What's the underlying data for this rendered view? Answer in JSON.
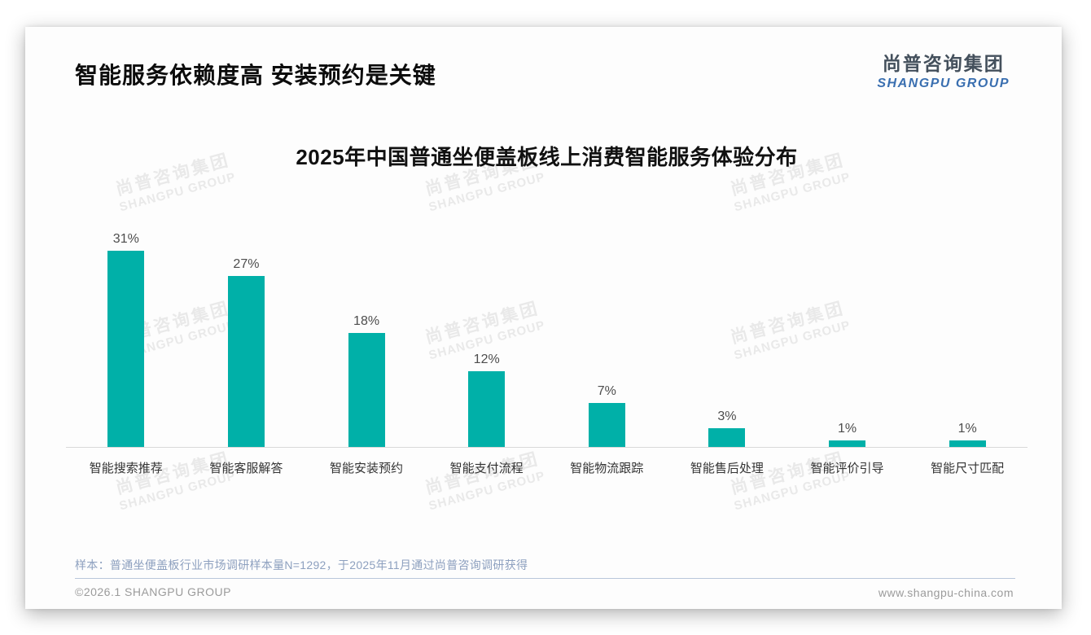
{
  "page": {
    "title": "智能服务依赖度高 安装预约是关键",
    "logo": {
      "cn": "尚普咨询集团",
      "en": "SHANGPU GROUP"
    },
    "watermark": {
      "cn": "尚普咨询集团",
      "en": "SHANGPU GROUP"
    }
  },
  "chart_data": {
    "type": "bar",
    "title": "2025年中国普通坐便盖板线上消费智能服务体验分布",
    "categories": [
      "智能搜索推荐",
      "智能客服解答",
      "智能安装预约",
      "智能支付流程",
      "智能物流跟踪",
      "智能售后处理",
      "智能评价引导",
      "智能尺寸匹配"
    ],
    "values": [
      31,
      27,
      18,
      12,
      7,
      3,
      1,
      1
    ],
    "unit": "%",
    "value_labels": [
      "31%",
      "27%",
      "18%",
      "12%",
      "7%",
      "3%",
      "1%",
      "1%"
    ],
    "xlabel": "",
    "ylabel": "",
    "ylim": [
      0,
      35
    ],
    "grid": false,
    "legend": false,
    "bar_color": "#00b0a8"
  },
  "footer": {
    "note": "样本：普通坐便盖板行业市场调研样本量N=1292，于2025年11月通过尚普咨询调研获得",
    "copyright": "©2026.1 SHANGPU GROUP",
    "website": "www.shangpu-china.com"
  },
  "colors": {
    "bar": "#00b0a8",
    "logo_blue": "#3a6fb0",
    "note_blue": "#8da0bf",
    "axis_gray": "#d9d9d9"
  }
}
